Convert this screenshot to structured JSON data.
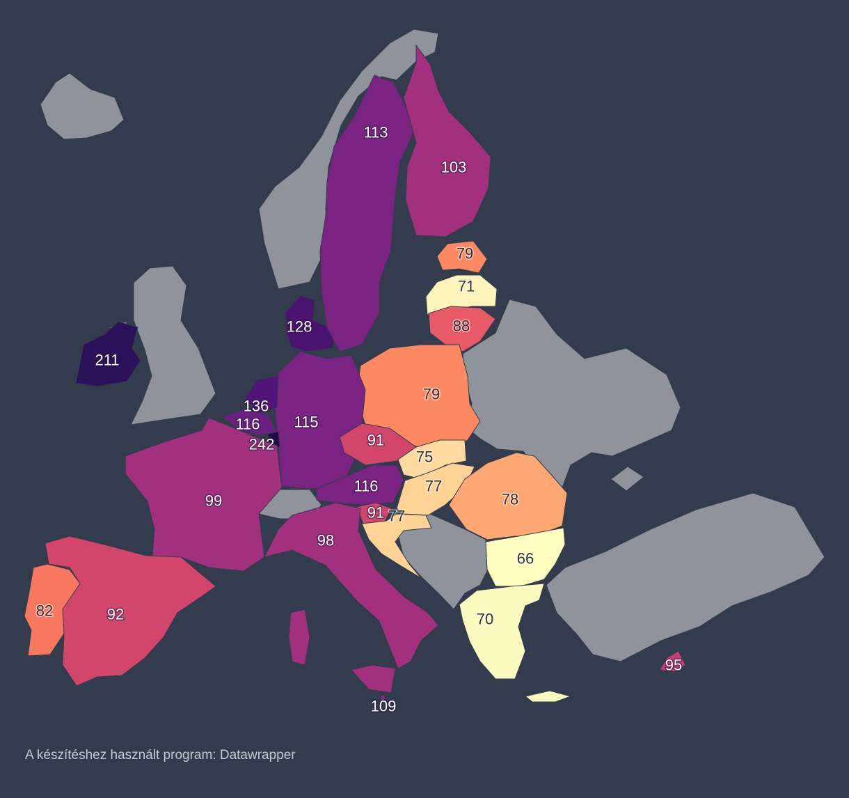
{
  "credit": "A készítéshez használt program: Datawrapper",
  "colors": {
    "background": "#323c4c",
    "no_data": "#8f949c",
    "border": "#323c4c"
  },
  "regions": [
    {
      "id": "ireland",
      "value": "211",
      "color": "#2b1158"
    },
    {
      "id": "denmark",
      "value": "128",
      "color": "#4a1370"
    },
    {
      "id": "netherlands",
      "value": "136",
      "color": "#51157a"
    },
    {
      "id": "belgium",
      "value": "116",
      "color": "#6b1f80"
    },
    {
      "id": "luxembourg",
      "value": "242",
      "color": "#1f0c48"
    },
    {
      "id": "germany",
      "value": "115",
      "color": "#7a2382"
    },
    {
      "id": "austria",
      "value": "116",
      "color": "#7a2382"
    },
    {
      "id": "sweden",
      "value": "113",
      "color": "#7a2382"
    },
    {
      "id": "finland",
      "value": "103",
      "color": "#a3307e"
    },
    {
      "id": "italy",
      "value": "98",
      "color": "#a3307e"
    },
    {
      "id": "malta",
      "value": "109",
      "color": "#8c2981"
    },
    {
      "id": "france",
      "value": "99",
      "color": "#a3307e"
    },
    {
      "id": "cyprus",
      "value": "95",
      "color": "#c73d73"
    },
    {
      "id": "spain",
      "value": "92",
      "color": "#d3466b"
    },
    {
      "id": "czechia",
      "value": "91",
      "color": "#d3466b"
    },
    {
      "id": "slovenia",
      "value": "91",
      "color": "#d3466b"
    },
    {
      "id": "lithuania",
      "value": "88",
      "color": "#e85a68"
    },
    {
      "id": "portugal",
      "value": "82",
      "color": "#f7785e"
    },
    {
      "id": "poland",
      "value": "79",
      "color": "#fc8961"
    },
    {
      "id": "estonia",
      "value": "79",
      "color": "#fc8961"
    },
    {
      "id": "romania",
      "value": "78",
      "color": "#fea772"
    },
    {
      "id": "hungary",
      "value": "77",
      "color": "#fed395"
    },
    {
      "id": "croatia",
      "value": "77",
      "color": "#fed395"
    },
    {
      "id": "slovakia",
      "value": "75",
      "color": "#fed9a0"
    },
    {
      "id": "latvia",
      "value": "71",
      "color": "#fdf4bc"
    },
    {
      "id": "greece",
      "value": "70",
      "color": "#fcfbbf"
    },
    {
      "id": "bulgaria",
      "value": "66",
      "color": "#fcfdbf"
    }
  ]
}
